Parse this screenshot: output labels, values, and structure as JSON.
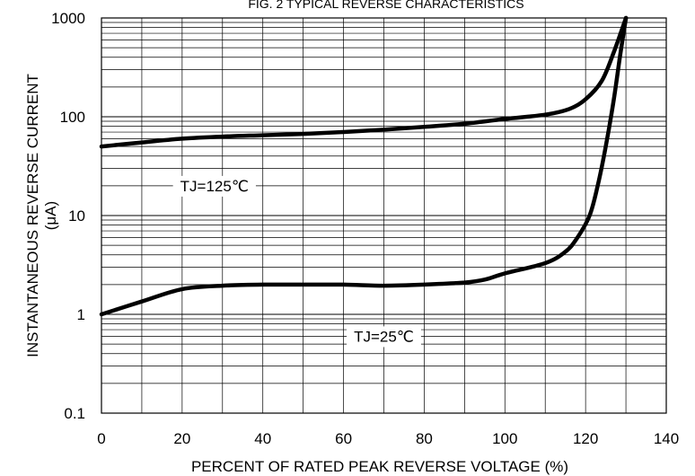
{
  "chart_data": {
    "type": "line",
    "title": "FIG. 2 TYPICAL REVERSE CHARACTERISTICS",
    "xlabel": "PERCENT OF RATED PEAK REVERSE VOLTAGE (%)",
    "ylabel": [
      "INSTANTANEOUS REVERSE CURRENT",
      "(μA)"
    ],
    "xlim": [
      0,
      140
    ],
    "ylim": [
      0.1,
      1000
    ],
    "yscale": "log",
    "grid": true,
    "x_ticks": [
      "0",
      "20",
      "40",
      "60",
      "80",
      "100",
      "120",
      "140"
    ],
    "y_ticks": [
      "0.1",
      "1",
      "10",
      "100",
      "1000"
    ],
    "series": [
      {
        "name": "TJ=125℃",
        "points": [
          [
            0,
            50
          ],
          [
            10,
            55
          ],
          [
            20,
            60
          ],
          [
            30,
            63
          ],
          [
            40,
            65
          ],
          [
            50,
            67
          ],
          [
            60,
            70
          ],
          [
            70,
            74
          ],
          [
            80,
            79
          ],
          [
            90,
            85
          ],
          [
            100,
            95
          ],
          [
            110,
            105
          ],
          [
            116,
            120
          ],
          [
            120,
            150
          ],
          [
            124,
            230
          ],
          [
            127,
            450
          ],
          [
            130,
            1000
          ]
        ]
      },
      {
        "name": "TJ=25℃",
        "points": [
          [
            0,
            1.0
          ],
          [
            10,
            1.35
          ],
          [
            20,
            1.8
          ],
          [
            30,
            1.95
          ],
          [
            40,
            2.0
          ],
          [
            50,
            2.0
          ],
          [
            60,
            2.0
          ],
          [
            70,
            1.95
          ],
          [
            80,
            2.0
          ],
          [
            90,
            2.1
          ],
          [
            95,
            2.25
          ],
          [
            100,
            2.6
          ],
          [
            110,
            3.3
          ],
          [
            115,
            4.3
          ],
          [
            118,
            6.0
          ],
          [
            121,
            10
          ],
          [
            123,
            20
          ],
          [
            125,
            50
          ],
          [
            127,
            150
          ],
          [
            128.5,
            400
          ],
          [
            130,
            1000
          ]
        ]
      }
    ],
    "annotations": [
      {
        "text": "TJ=125℃",
        "x": 28,
        "y": 20
      },
      {
        "text": "TJ=25℃",
        "x": 70,
        "y": 0.6
      }
    ],
    "colors": {
      "line": "#000000",
      "grid": "#000000",
      "background": "#ffffff"
    }
  }
}
